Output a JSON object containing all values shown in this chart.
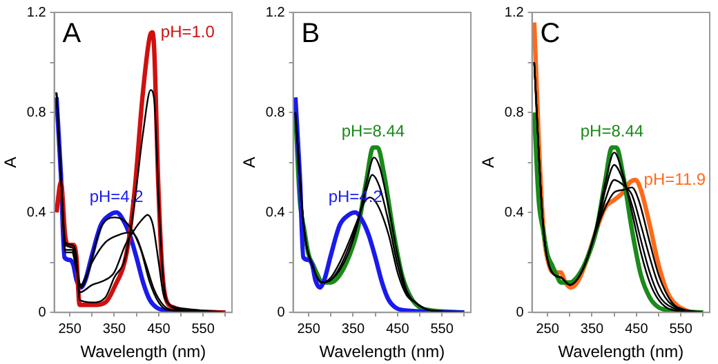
{
  "chart_data": [
    {
      "type": "line",
      "xlabel": "Wavelength (nm)",
      "ylabel": "A",
      "annotations": [
        "A"
      ],
      "xlim": [
        215,
        615
      ],
      "ylim": [
        0,
        1.2
      ],
      "xticks": [
        250,
        {
          "value": 300,
          "label": null
        },
        350,
        {
          "value": 400,
          "label": null
        },
        450,
        {
          "value": 500,
          "label": null
        },
        550,
        {
          "value": 600,
          "label": null
        }
      ],
      "yticks": [
        0,
        {
          "value": 0.2,
          "label": null
        },
        0.4,
        {
          "value": 0.6,
          "label": null
        },
        0.8,
        {
          "value": 1.0,
          "label": null
        },
        1.2
      ],
      "grid": false,
      "legend": false,
      "series": [
        {
          "color": "#000000",
          "x": [
            220,
            230,
            240,
            255,
            265,
            272,
            300,
            330,
            350,
            375,
            395,
            415,
            432,
            440,
            450,
            460,
            470,
            490,
            600
          ],
          "values": [
            0.88,
            0.55,
            0.28,
            0.27,
            0.22,
            0.05,
            0.04,
            0.06,
            0.14,
            0.22,
            0.43,
            0.72,
            0.89,
            0.85,
            0.45,
            0.14,
            0.04,
            0.02,
            0
          ]
        },
        {
          "color": "#000000",
          "x": [
            220,
            230,
            240,
            255,
            265,
            272,
            300,
            330,
            350,
            375,
            395,
            412,
            425,
            437,
            450,
            460,
            475,
            500,
            600
          ],
          "values": [
            0.88,
            0.55,
            0.27,
            0.26,
            0.2,
            0.08,
            0.11,
            0.13,
            0.16,
            0.27,
            0.33,
            0.37,
            0.39,
            0.35,
            0.2,
            0.08,
            0.03,
            0.01,
            0
          ]
        },
        {
          "color": "#000000",
          "x": [
            220,
            230,
            240,
            255,
            265,
            275,
            300,
            330,
            360,
            385,
            400,
            420,
            440,
            460,
            480,
            600
          ],
          "values": [
            0.88,
            0.55,
            0.25,
            0.25,
            0.18,
            0.1,
            0.2,
            0.28,
            0.31,
            0.32,
            0.3,
            0.2,
            0.09,
            0.03,
            0.01,
            0
          ]
        },
        {
          "color": "#000000",
          "x": [
            220,
            230,
            240,
            255,
            265,
            275,
            290,
            320,
            350,
            370,
            390,
            410,
            430,
            450,
            470,
            600
          ],
          "values": [
            0.88,
            0.55,
            0.24,
            0.24,
            0.17,
            0.11,
            0.16,
            0.34,
            0.38,
            0.37,
            0.33,
            0.25,
            0.12,
            0.04,
            0.01,
            0
          ]
        },
        {
          "name": "pH=1.0",
          "color": "#d01010",
          "x": [
            220,
            230,
            240,
            248,
            258,
            265,
            272,
            307,
            330,
            350,
            378,
            396,
            414,
            431,
            436,
            440,
            449,
            458,
            467,
            484,
            500,
            600
          ],
          "values": [
            0.4,
            0.52,
            0.3,
            0.27,
            0.27,
            0.22,
            0.03,
            0.03,
            0.04,
            0.1,
            0.24,
            0.49,
            0.87,
            1.11,
            1.12,
            1.05,
            0.52,
            0.17,
            0.05,
            0.02,
            0.01,
            0
          ]
        },
        {
          "name": "pH=4.2",
          "color": "#1a1aee",
          "x": [
            220,
            230,
            238,
            250,
            258,
            265,
            275,
            285,
            300,
            320,
            340,
            355,
            370,
            385,
            400,
            415,
            430,
            445,
            460,
            600
          ],
          "values": [
            0.86,
            0.55,
            0.22,
            0.21,
            0.19,
            0.13,
            0.1,
            0.13,
            0.23,
            0.35,
            0.39,
            0.4,
            0.37,
            0.31,
            0.22,
            0.12,
            0.05,
            0.02,
            0.01,
            0
          ]
        }
      ]
    },
    {
      "type": "line",
      "xlabel": "Wavelength (nm)",
      "ylabel": "A",
      "annotations": [
        "B"
      ],
      "xlim": [
        215,
        615
      ],
      "ylim": [
        0,
        1.2
      ],
      "xticks": [
        250,
        {
          "value": 300,
          "label": null
        },
        350,
        {
          "value": 400,
          "label": null
        },
        450,
        {
          "value": 500,
          "label": null
        },
        550,
        {
          "value": 600,
          "label": null
        }
      ],
      "yticks": [
        0,
        {
          "value": 0.2,
          "label": null
        },
        0.4,
        {
          "value": 0.6,
          "label": null
        },
        0.8,
        {
          "value": 1.0,
          "label": null
        },
        1.2
      ],
      "grid": false,
      "legend": false,
      "series": [
        {
          "color": "#000000",
          "x": [
            220,
            240,
            260,
            280,
            300,
            320,
            340,
            360,
            380,
            397,
            410,
            430,
            450,
            470,
            490,
            520,
            600
          ],
          "values": [
            0.8,
            0.33,
            0.18,
            0.12,
            0.13,
            0.17,
            0.24,
            0.35,
            0.52,
            0.62,
            0.58,
            0.42,
            0.23,
            0.09,
            0.04,
            0.01,
            0
          ]
        },
        {
          "color": "#000000",
          "x": [
            220,
            240,
            260,
            280,
            300,
            320,
            340,
            360,
            380,
            393,
            410,
            430,
            450,
            470,
            490,
            520,
            600
          ],
          "values": [
            0.8,
            0.33,
            0.18,
            0.12,
            0.13,
            0.18,
            0.26,
            0.36,
            0.49,
            0.55,
            0.5,
            0.36,
            0.19,
            0.08,
            0.04,
            0.01,
            0
          ]
        },
        {
          "color": "#000000",
          "x": [
            220,
            240,
            260,
            280,
            300,
            320,
            340,
            360,
            375,
            388,
            405,
            430,
            450,
            470,
            490,
            520,
            600
          ],
          "values": [
            0.8,
            0.33,
            0.18,
            0.12,
            0.14,
            0.2,
            0.28,
            0.37,
            0.44,
            0.46,
            0.43,
            0.31,
            0.16,
            0.07,
            0.04,
            0.01,
            0
          ]
        },
        {
          "name": "pH=4.2",
          "color": "#1a1aee",
          "x": [
            220,
            230,
            238,
            250,
            258,
            265,
            275,
            285,
            300,
            320,
            340,
            355,
            370,
            385,
            400,
            415,
            430,
            445,
            460,
            600
          ],
          "values": [
            0.86,
            0.55,
            0.22,
            0.21,
            0.19,
            0.13,
            0.1,
            0.13,
            0.23,
            0.35,
            0.39,
            0.4,
            0.37,
            0.31,
            0.22,
            0.12,
            0.05,
            0.02,
            0.01,
            0
          ]
        },
        {
          "name": "pH=8.44",
          "color": "#1a8a1a",
          "x": [
            220,
            230,
            240,
            250,
            260,
            270,
            280,
            300,
            320,
            340,
            360,
            380,
            395,
            405,
            420,
            440,
            460,
            480,
            500,
            520,
            600
          ],
          "values": [
            0.8,
            0.45,
            0.33,
            0.23,
            0.19,
            0.15,
            0.12,
            0.12,
            0.15,
            0.22,
            0.33,
            0.53,
            0.66,
            0.66,
            0.55,
            0.33,
            0.15,
            0.06,
            0.02,
            0.01,
            0
          ]
        }
      ]
    },
    {
      "type": "line",
      "xlabel": "Wavelength (nm)",
      "ylabel": "A",
      "annotations": [
        "C"
      ],
      "xlim": [
        215,
        615
      ],
      "ylim": [
        0,
        1.2
      ],
      "xticks": [
        250,
        {
          "value": 300,
          "label": null
        },
        350,
        {
          "value": 400,
          "label": null
        },
        450,
        {
          "value": 500,
          "label": null
        },
        550,
        {
          "value": 600,
          "label": null
        }
      ],
      "yticks": [
        0,
        {
          "value": 0.2,
          "label": null
        },
        0.4,
        {
          "value": 0.6,
          "label": null
        },
        0.8,
        {
          "value": 1.0,
          "label": null
        },
        1.2
      ],
      "grid": false,
      "legend": false,
      "series": [
        {
          "color": "#000000",
          "x": [
            220,
            240,
            260,
            280,
            300,
            320,
            340,
            360,
            380,
            400,
            420,
            440,
            460,
            480,
            500,
            530,
            600
          ],
          "values": [
            1.0,
            0.35,
            0.16,
            0.14,
            0.11,
            0.14,
            0.22,
            0.35,
            0.52,
            0.64,
            0.55,
            0.4,
            0.24,
            0.12,
            0.05,
            0.01,
            0
          ]
        },
        {
          "color": "#000000",
          "x": [
            220,
            240,
            260,
            280,
            300,
            320,
            340,
            360,
            380,
            400,
            420,
            440,
            460,
            480,
            500,
            530,
            600
          ],
          "values": [
            1.0,
            0.35,
            0.16,
            0.14,
            0.11,
            0.14,
            0.22,
            0.34,
            0.49,
            0.59,
            0.53,
            0.43,
            0.29,
            0.16,
            0.07,
            0.02,
            0
          ]
        },
        {
          "color": "#000000",
          "x": [
            220,
            240,
            260,
            280,
            300,
            320,
            340,
            360,
            380,
            400,
            420,
            440,
            460,
            480,
            500,
            530,
            600
          ],
          "values": [
            1.0,
            0.35,
            0.16,
            0.14,
            0.11,
            0.14,
            0.22,
            0.33,
            0.45,
            0.53,
            0.51,
            0.47,
            0.35,
            0.22,
            0.11,
            0.03,
            0
          ]
        },
        {
          "color": "#000000",
          "x": [
            220,
            240,
            260,
            280,
            300,
            320,
            340,
            360,
            380,
            400,
            420,
            440,
            455,
            480,
            500,
            530,
            560,
            600
          ],
          "values": [
            1.0,
            0.35,
            0.16,
            0.14,
            0.11,
            0.14,
            0.22,
            0.33,
            0.42,
            0.48,
            0.49,
            0.5,
            0.45,
            0.28,
            0.15,
            0.04,
            0.01,
            0
          ]
        },
        {
          "name": "pH=8.44",
          "color": "#1a8a1a",
          "x": [
            220,
            230,
            240,
            250,
            260,
            270,
            280,
            300,
            320,
            340,
            360,
            380,
            395,
            405,
            420,
            440,
            460,
            480,
            500,
            520,
            600
          ],
          "values": [
            0.8,
            0.45,
            0.33,
            0.23,
            0.19,
            0.15,
            0.12,
            0.12,
            0.15,
            0.22,
            0.33,
            0.53,
            0.66,
            0.66,
            0.55,
            0.33,
            0.15,
            0.06,
            0.02,
            0.01,
            0
          ]
        },
        {
          "name": "pH=11.9",
          "color": "#ff6a1a",
          "x": [
            220,
            230,
            240,
            255,
            265,
            280,
            290,
            303,
            320,
            340,
            360,
            380,
            400,
            420,
            435,
            448,
            460,
            480,
            500,
            520,
            540,
            560,
            580,
            600
          ],
          "values": [
            1.16,
            0.7,
            0.35,
            0.18,
            0.16,
            0.16,
            0.12,
            0.1,
            0.13,
            0.22,
            0.33,
            0.42,
            0.45,
            0.48,
            0.52,
            0.53,
            0.49,
            0.35,
            0.19,
            0.08,
            0.03,
            0.01,
            0,
            0
          ]
        }
      ]
    }
  ]
}
